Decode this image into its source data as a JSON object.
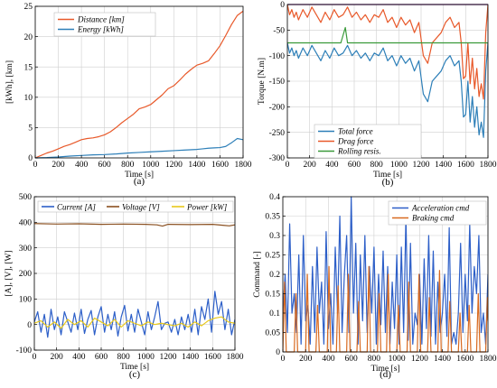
{
  "chart_data": [
    {
      "id": "a",
      "type": "line",
      "caption": "(a)",
      "xlabel": "Time [s]",
      "ylabel": "[kWh], [km]",
      "xlim": [
        0,
        1800
      ],
      "ylim": [
        0,
        25
      ],
      "xticks": [
        0,
        200,
        400,
        600,
        800,
        1000,
        1200,
        1400,
        1600,
        1800
      ],
      "yticks": [
        0,
        5,
        10,
        15,
        20,
        25
      ],
      "grid": true,
      "legend_position": "top-left",
      "series": [
        {
          "name": "Distance [km]",
          "color": "#e8592a",
          "x": [
            0,
            50,
            100,
            150,
            200,
            250,
            300,
            350,
            400,
            450,
            500,
            550,
            600,
            650,
            700,
            750,
            800,
            850,
            900,
            950,
            1000,
            1050,
            1100,
            1150,
            1200,
            1250,
            1300,
            1350,
            1400,
            1450,
            1500,
            1550,
            1600,
            1650,
            1700,
            1750,
            1800
          ],
          "y": [
            0,
            0.4,
            0.8,
            1.1,
            1.5,
            1.9,
            2.2,
            2.6,
            3.0,
            3.2,
            3.3,
            3.5,
            3.8,
            4.3,
            5.0,
            5.8,
            6.5,
            7.2,
            8.1,
            8.4,
            8.8,
            9.6,
            10.4,
            11.4,
            11.9,
            12.8,
            13.8,
            14.6,
            15.3,
            15.6,
            16.0,
            17.2,
            18.5,
            20.2,
            22.0,
            23.5,
            24.2
          ]
        },
        {
          "name": "Energy [kWh]",
          "color": "#2d7fb8",
          "x": [
            0,
            100,
            200,
            300,
            400,
            500,
            600,
            700,
            800,
            900,
            1000,
            1100,
            1200,
            1300,
            1400,
            1450,
            1500,
            1550,
            1600,
            1650,
            1700,
            1750,
            1800
          ],
          "y": [
            0,
            0.05,
            0.15,
            0.3,
            0.4,
            0.5,
            0.55,
            0.65,
            0.8,
            0.9,
            1.0,
            1.1,
            1.2,
            1.3,
            1.4,
            1.5,
            1.6,
            1.65,
            1.7,
            1.9,
            2.5,
            3.2,
            3.0
          ]
        }
      ]
    },
    {
      "id": "b",
      "type": "line",
      "caption": "(b)",
      "xlabel": "Time [s]",
      "ylabel": "Torque [N.m]",
      "xlim": [
        0,
        1800
      ],
      "ylim": [
        -300,
        0
      ],
      "xticks": [
        0,
        200,
        400,
        600,
        800,
        1000,
        1200,
        1400,
        1600,
        1800
      ],
      "yticks": [
        0,
        -50,
        -100,
        -150,
        -200,
        -250,
        -300
      ],
      "grid": true,
      "legend_position": "bottom-left",
      "series": [
        {
          "name": "Total force",
          "color": "#2d7fb8",
          "x": [
            0,
            20,
            40,
            60,
            80,
            100,
            140,
            180,
            220,
            260,
            300,
            340,
            380,
            420,
            460,
            500,
            540,
            580,
            620,
            660,
            700,
            740,
            780,
            820,
            860,
            900,
            940,
            980,
            1020,
            1060,
            1100,
            1140,
            1180,
            1220,
            1260,
            1300,
            1340,
            1380,
            1420,
            1460,
            1500,
            1540,
            1560,
            1580,
            1600,
            1620,
            1640,
            1660,
            1680,
            1700,
            1720,
            1740,
            1760,
            1780,
            1800
          ],
          "y": [
            -75,
            -95,
            -85,
            -100,
            -90,
            -105,
            -85,
            -100,
            -80,
            -95,
            -110,
            -90,
            -105,
            -85,
            -100,
            -95,
            -80,
            -100,
            -90,
            -105,
            -95,
            -110,
            -95,
            -100,
            -85,
            -110,
            -100,
            -120,
            -100,
            -115,
            -105,
            -130,
            -110,
            -175,
            -190,
            -150,
            -140,
            -130,
            -110,
            -100,
            -120,
            -110,
            -150,
            -220,
            -215,
            -150,
            -230,
            -180,
            -240,
            -200,
            -255,
            -230,
            -260,
            -130,
            -75
          ]
        },
        {
          "name": "Drag force",
          "color": "#e8592a",
          "x": [
            0,
            20,
            40,
            60,
            80,
            100,
            140,
            180,
            220,
            260,
            300,
            340,
            380,
            420,
            460,
            500,
            540,
            580,
            620,
            660,
            700,
            740,
            780,
            820,
            860,
            900,
            940,
            980,
            1020,
            1060,
            1100,
            1140,
            1180,
            1220,
            1260,
            1300,
            1340,
            1380,
            1420,
            1460,
            1500,
            1540,
            1560,
            1580,
            1600,
            1620,
            1640,
            1660,
            1680,
            1700,
            1720,
            1740,
            1760,
            1780,
            1800
          ],
          "y": [
            0,
            -20,
            -10,
            -25,
            -15,
            -30,
            -10,
            -25,
            -5,
            -20,
            -35,
            -15,
            -30,
            -10,
            -25,
            -20,
            -5,
            -25,
            -15,
            -30,
            -20,
            -35,
            -20,
            -25,
            -10,
            -35,
            -25,
            -45,
            -25,
            -40,
            -30,
            -55,
            -35,
            -100,
            -115,
            -75,
            -65,
            -55,
            -35,
            -25,
            -45,
            -35,
            -75,
            -145,
            -140,
            -75,
            -155,
            -105,
            -165,
            -125,
            -180,
            -155,
            -185,
            -55,
            0
          ]
        },
        {
          "name": "Rolling resis.",
          "color": "#3a9a3a",
          "x": [
            0,
            480,
            500,
            520,
            540,
            560,
            1800
          ],
          "y": [
            -75,
            -75,
            -60,
            -45,
            -75,
            -75,
            -75
          ]
        },
        {
          "name": "",
          "color": "#7a2a8a",
          "x": [
            0,
            1800
          ],
          "y": [
            0,
            0
          ]
        }
      ]
    },
    {
      "id": "c",
      "type": "line",
      "caption": "(c)",
      "xlabel": "Time [s]",
      "ylabel": "[A], [V], [W]",
      "xlim": [
        0,
        1800
      ],
      "ylim": [
        -100,
        500
      ],
      "xticks": [
        0,
        200,
        400,
        600,
        800,
        1000,
        1200,
        1400,
        1600,
        1800
      ],
      "yticks": [
        -100,
        0,
        100,
        200,
        300,
        400,
        500
      ],
      "grid": true,
      "legend_position": "top",
      "series": [
        {
          "name": "Current [A]",
          "color": "#2d5fc8",
          "x": [
            0,
            30,
            60,
            90,
            120,
            150,
            180,
            210,
            240,
            270,
            300,
            330,
            360,
            390,
            420,
            450,
            480,
            510,
            540,
            570,
            600,
            630,
            660,
            690,
            720,
            750,
            780,
            810,
            840,
            870,
            900,
            930,
            960,
            990,
            1020,
            1050,
            1080,
            1110,
            1140,
            1170,
            1200,
            1230,
            1260,
            1290,
            1320,
            1350,
            1380,
            1410,
            1440,
            1470,
            1500,
            1530,
            1560,
            1590,
            1620,
            1650,
            1680,
            1710,
            1740,
            1770,
            1800
          ],
          "y": [
            10,
            50,
            -30,
            40,
            -50,
            60,
            -20,
            30,
            -40,
            50,
            10,
            -30,
            45,
            -20,
            60,
            -35,
            20,
            55,
            -40,
            30,
            70,
            -30,
            40,
            -20,
            50,
            -45,
            30,
            75,
            -25,
            40,
            -30,
            60,
            10,
            -40,
            50,
            -20,
            30,
            90,
            -20,
            5,
            10,
            -30,
            20,
            -40,
            30,
            -20,
            40,
            -30,
            60,
            -40,
            70,
            20,
            100,
            -30,
            130,
            40,
            90,
            -20,
            60,
            -40,
            20
          ]
        },
        {
          "name": "Voltage [V]",
          "color": "#8a5020",
          "x": [
            0,
            200,
            400,
            600,
            800,
            1000,
            1100,
            1150,
            1200,
            1400,
            1600,
            1700,
            1750,
            1800
          ],
          "y": [
            395,
            393,
            394,
            392,
            393,
            392,
            390,
            385,
            392,
            391,
            392,
            388,
            386,
            390
          ]
        },
        {
          "name": "Power [kW]",
          "color": "#e8c81a",
          "x": [
            0,
            60,
            120,
            180,
            240,
            300,
            360,
            420,
            480,
            540,
            600,
            660,
            720,
            780,
            840,
            900,
            960,
            1020,
            1080,
            1140,
            1200,
            1260,
            1320,
            1380,
            1440,
            1500,
            1560,
            1620,
            1680,
            1740,
            1800
          ],
          "y": [
            5,
            15,
            -10,
            10,
            -15,
            20,
            0,
            15,
            -10,
            25,
            10,
            -5,
            20,
            -10,
            15,
            5,
            -5,
            10,
            0,
            5,
            0,
            -5,
            5,
            -10,
            10,
            -5,
            15,
            25,
            30,
            10,
            5
          ]
        }
      ]
    },
    {
      "id": "d",
      "type": "line",
      "caption": "(d)",
      "xlabel": "Time [s]",
      "ylabel": "Command [-]",
      "xlim": [
        0,
        1800
      ],
      "ylim": [
        0,
        0.4
      ],
      "xticks": [
        0,
        200,
        400,
        600,
        800,
        1000,
        1200,
        1400,
        1600,
        1800
      ],
      "yticks": [
        0,
        0.05,
        0.1,
        0.15,
        0.2,
        0.25,
        0.3,
        0.35,
        0.4
      ],
      "grid": true,
      "legend_position": "top-right",
      "series": [
        {
          "name": "Acceleration cmd",
          "color": "#2d5fc8",
          "x": [
            0,
            20,
            40,
            60,
            80,
            100,
            120,
            140,
            160,
            180,
            200,
            220,
            240,
            260,
            280,
            300,
            320,
            340,
            360,
            380,
            400,
            420,
            440,
            460,
            480,
            500,
            520,
            540,
            560,
            580,
            600,
            620,
            640,
            660,
            680,
            700,
            720,
            740,
            760,
            780,
            800,
            820,
            840,
            860,
            880,
            900,
            920,
            940,
            960,
            980,
            1000,
            1020,
            1040,
            1060,
            1080,
            1100,
            1120,
            1140,
            1160,
            1180,
            1200,
            1220,
            1240,
            1260,
            1280,
            1300,
            1320,
            1340,
            1360,
            1380,
            1400,
            1420,
            1440,
            1460,
            1480,
            1500,
            1520,
            1540,
            1560,
            1580,
            1600,
            1620,
            1640,
            1660,
            1680,
            1700,
            1720,
            1740,
            1760,
            1780,
            1800
          ],
          "y": [
            0.1,
            0.2,
            0.05,
            0.33,
            0.1,
            0.15,
            0.05,
            0.25,
            0.02,
            0.3,
            0.08,
            0.12,
            0.02,
            0.22,
            0.05,
            0.27,
            0.1,
            0.18,
            0.02,
            0.31,
            0.06,
            0.15,
            0.02,
            0.27,
            0.1,
            0.35,
            0.05,
            0.2,
            0.3,
            0.05,
            0.4,
            0.1,
            0.28,
            0.02,
            0.25,
            0.08,
            0.3,
            0.05,
            0.22,
            0.1,
            0.27,
            0.02,
            0.2,
            0.07,
            0.26,
            0.05,
            0.22,
            0.02,
            0.18,
            0.06,
            0.25,
            0.02,
            0.27,
            0.05,
            0.35,
            0.03,
            0.28,
            0.02,
            0.1,
            0.07,
            0.2,
            0.02,
            0.24,
            0.06,
            0.3,
            0.04,
            0.26,
            0.02,
            0.18,
            0.05,
            0.1,
            0.2,
            0.04,
            0.32,
            0.02,
            0.05,
            0.02,
            0.1,
            0.28,
            0.05,
            0.2,
            0.08,
            0.33,
            0.1,
            0.22,
            0.15,
            0.3,
            0.05,
            0.1,
            0.02,
            0.2
          ]
        },
        {
          "name": "Braking cmd",
          "color": "#d86a20",
          "x": [
            0,
            15,
            30,
            100,
            115,
            130,
            200,
            215,
            230,
            290,
            305,
            320,
            390,
            405,
            420,
            470,
            485,
            500,
            560,
            575,
            590,
            650,
            665,
            680,
            740,
            755,
            770,
            830,
            845,
            860,
            910,
            925,
            940,
            1000,
            1015,
            1030,
            1090,
            1105,
            1120,
            1180,
            1195,
            1210,
            1270,
            1285,
            1300,
            1360,
            1375,
            1390,
            1450,
            1465,
            1480,
            1540,
            1555,
            1570,
            1620,
            1635,
            1650,
            1700,
            1715,
            1730,
            1780,
            1795,
            1800
          ],
          "y": [
            0,
            0.18,
            0,
            0,
            0.15,
            0,
            0,
            0.2,
            0,
            0,
            0.12,
            0,
            0,
            0.22,
            0,
            0,
            0.17,
            0,
            0,
            0.2,
            0,
            0,
            0.13,
            0,
            0,
            0.22,
            0,
            0,
            0.15,
            0,
            0,
            0.2,
            0,
            0,
            0.12,
            0,
            0,
            0.18,
            0,
            0,
            0.2,
            0,
            0,
            0.14,
            0,
            0,
            0.21,
            0,
            0,
            0.13,
            0,
            0,
            0.1,
            0,
            0,
            0.12,
            0,
            0,
            0.15,
            0,
            0,
            0.14,
            0.08
          ]
        }
      ]
    }
  ]
}
